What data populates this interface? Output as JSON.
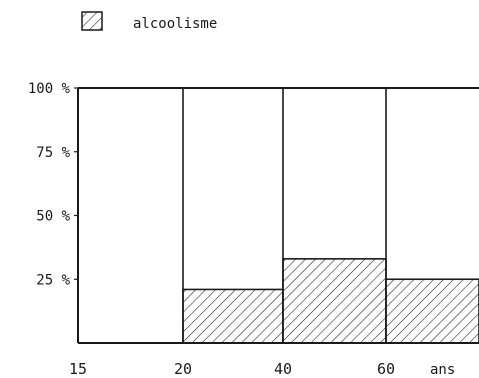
{
  "chart_data": {
    "type": "bar",
    "legend": {
      "label": "alcoolisme",
      "pattern": "diagonal-hatch",
      "position": "top-left"
    },
    "x_ticks": [
      "15",
      "20",
      "40",
      "60"
    ],
    "x_unit": "ans",
    "y_ticks": [
      "25 %",
      "50 %",
      "75 %",
      "100 %"
    ],
    "xlim": [
      15,
      80
    ],
    "ylim": [
      0,
      100
    ],
    "bins": [
      {
        "from": 15,
        "to": 20,
        "value": 0
      },
      {
        "from": 20,
        "to": 40,
        "value": 21
      },
      {
        "from": 40,
        "to": 60,
        "value": 33
      },
      {
        "from": 60,
        "to": 80,
        "value": 25
      }
    ],
    "grid": false
  }
}
